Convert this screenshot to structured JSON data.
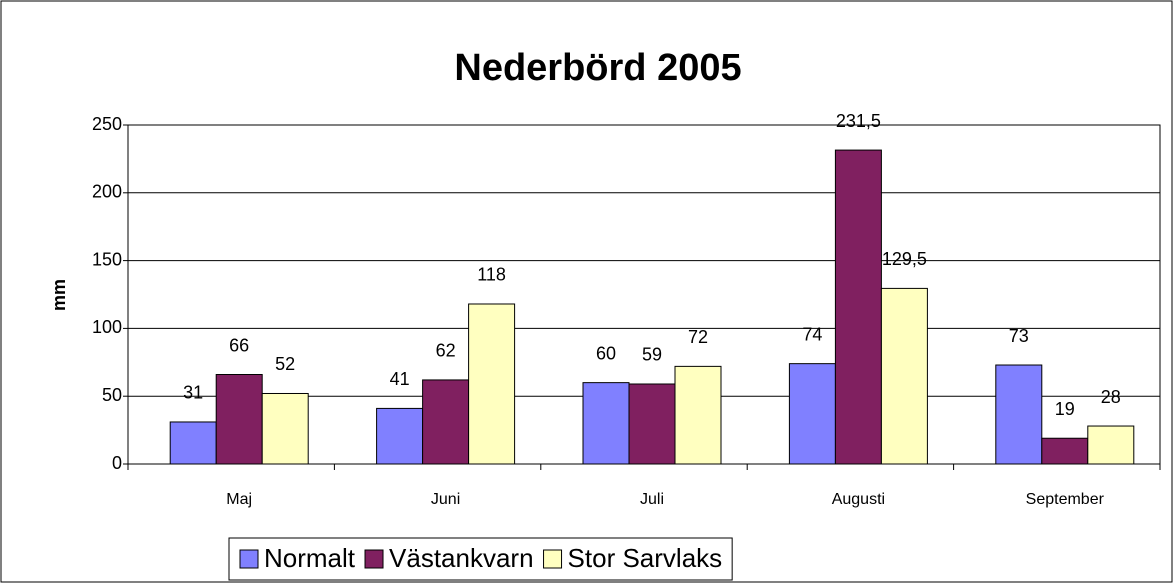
{
  "chart_data": {
    "type": "bar",
    "title": "Nederbörd 2005",
    "y_label": "mm",
    "categories": [
      "Maj",
      "Juni",
      "Juli",
      "Augusti",
      "September"
    ],
    "series": [
      {
        "name": "Normalt",
        "color": "#8080ff",
        "values": [
          31,
          41,
          60,
          74,
          73
        ]
      },
      {
        "name": "Västankvarn",
        "color": "#802060",
        "values": [
          66,
          62,
          59,
          231.5,
          19
        ],
        "value_labels": [
          "66",
          "62",
          "59",
          "231,5",
          "19"
        ]
      },
      {
        "name": "Stor Sarvlaks",
        "color": "#ffffc0",
        "values": [
          52,
          118,
          72,
          129.5,
          28
        ],
        "value_labels": [
          "52",
          "118",
          "72",
          "129,5",
          "28"
        ]
      }
    ],
    "ylim": [
      0,
      250
    ],
    "yticks": [
      0,
      50,
      100,
      150,
      200,
      250
    ],
    "grid": true,
    "legend": "bottom"
  }
}
